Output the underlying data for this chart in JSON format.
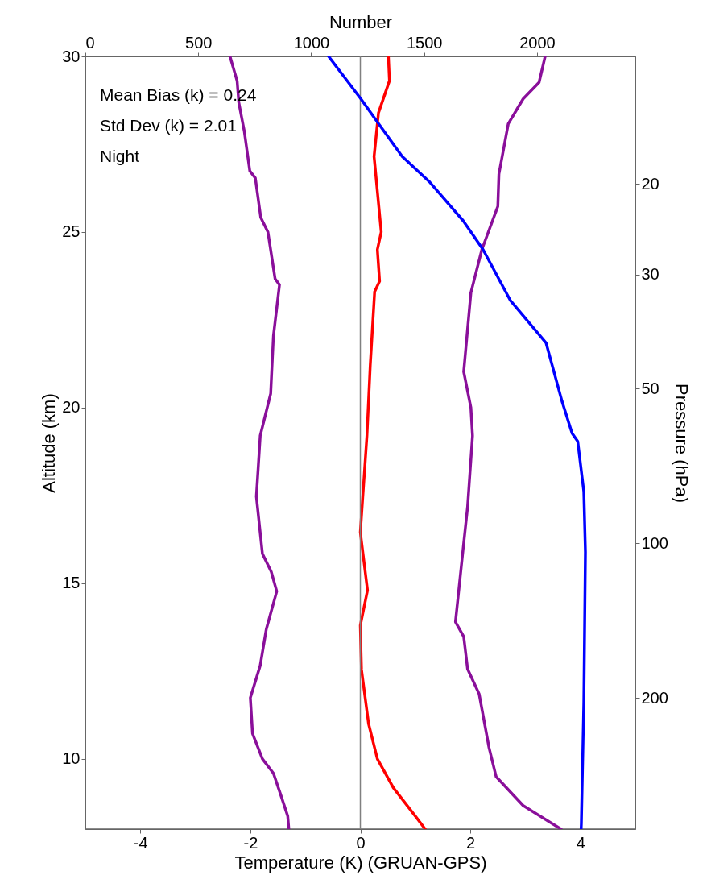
{
  "chart_data": {
    "type": "line",
    "xlabel": "Temperature (K) (GRUAN-GPS)",
    "ylabel": "Altitude (km)",
    "y2label": "Pressure (hPa)",
    "x2label": "Number",
    "xlim": [
      -5,
      5
    ],
    "xticks": [
      -4,
      -2,
      0,
      2,
      4
    ],
    "x2lim": [
      0,
      2435
    ],
    "x2ticks": [
      0,
      500,
      1000,
      1500,
      2000
    ],
    "ylim": [
      8,
      30
    ],
    "yticks": [
      10,
      15,
      20,
      25,
      30
    ],
    "y2lim": [
      360,
      11.3
    ],
    "y2ticks": [
      20,
      30,
      50,
      100,
      200
    ],
    "log": "y2",
    "grid": false,
    "ref_lines": [
      {
        "axis": "x",
        "value": 0,
        "color": "#808080"
      }
    ],
    "annotations": [
      "Mean Bias (k) =   0.24",
      "Std Dev (k) =   2.01",
      "Night"
    ],
    "series": [
      {
        "color": "#8a0f9a",
        "x": [
          -2.37,
          -2.24,
          -2.21,
          -2.11,
          -2.01,
          -1.91,
          -1.81,
          -1.68,
          -1.55,
          -1.47,
          -1.58,
          -1.63,
          -1.82,
          -1.89,
          -1.78,
          -1.62,
          -1.52,
          -1.71,
          -1.82,
          -2.0,
          -1.96,
          -1.78,
          -1.58,
          -1.45,
          -1.32,
          -1.3
        ],
        "values": [
          30,
          29.3,
          28.69,
          27.87,
          26.74,
          26.54,
          25.41,
          25.0,
          23.67,
          23.5,
          22.04,
          20.4,
          19.2,
          17.47,
          15.84,
          15.33,
          14.77,
          13.69,
          12.66,
          11.74,
          10.72,
          10.0,
          9.59,
          8.99,
          8.37,
          8.0
        ]
      },
      {
        "color": "#8a0f9a",
        "x": [
          3.36,
          3.25,
          2.96,
          2.69,
          2.52,
          2.5,
          2.21,
          2.01,
          1.88,
          2.01,
          2.04,
          1.95,
          1.88,
          1.73,
          1.88,
          1.95,
          2.16,
          2.34,
          2.47,
          2.96,
          3.65
        ],
        "values": [
          30,
          29.26,
          28.79,
          28.08,
          26.65,
          25.73,
          24.5,
          23.27,
          21.02,
          20.0,
          19.2,
          17.17,
          16.14,
          13.9,
          13.48,
          12.56,
          11.85,
          10.32,
          9.49,
          8.67,
          8.0
        ]
      },
      {
        "color": "#ff0000",
        "x": [
          0.51,
          0.53,
          0.33,
          0.25,
          0.38,
          0.31,
          0.35,
          0.26,
          0.18,
          0.12,
          0.0,
          0.13,
          0.0,
          0.02,
          0.15,
          0.31,
          0.6,
          1.0,
          1.18
        ],
        "values": [
          30,
          29.31,
          28.39,
          27.15,
          25.0,
          24.5,
          23.6,
          23.3,
          21.2,
          19.2,
          16.45,
          14.8,
          13.8,
          12.55,
          11.0,
          10.0,
          9.18,
          8.37,
          8.0
        ]
      },
      {
        "color": "#0000ff",
        "axis": "x2",
        "x": [
          1077,
          1220,
          1299,
          1403,
          1522,
          1673,
          1761,
          1881,
          2040,
          2110,
          2155,
          2180,
          2207,
          2214,
          2207,
          2196,
          2195
        ],
        "values": [
          30,
          28.79,
          28.08,
          27.15,
          26.44,
          25.32,
          24.5,
          23.06,
          21.84,
          20.19,
          19.27,
          19.04,
          17.61,
          15.89,
          11.59,
          8.15,
          8.0
        ]
      }
    ]
  }
}
